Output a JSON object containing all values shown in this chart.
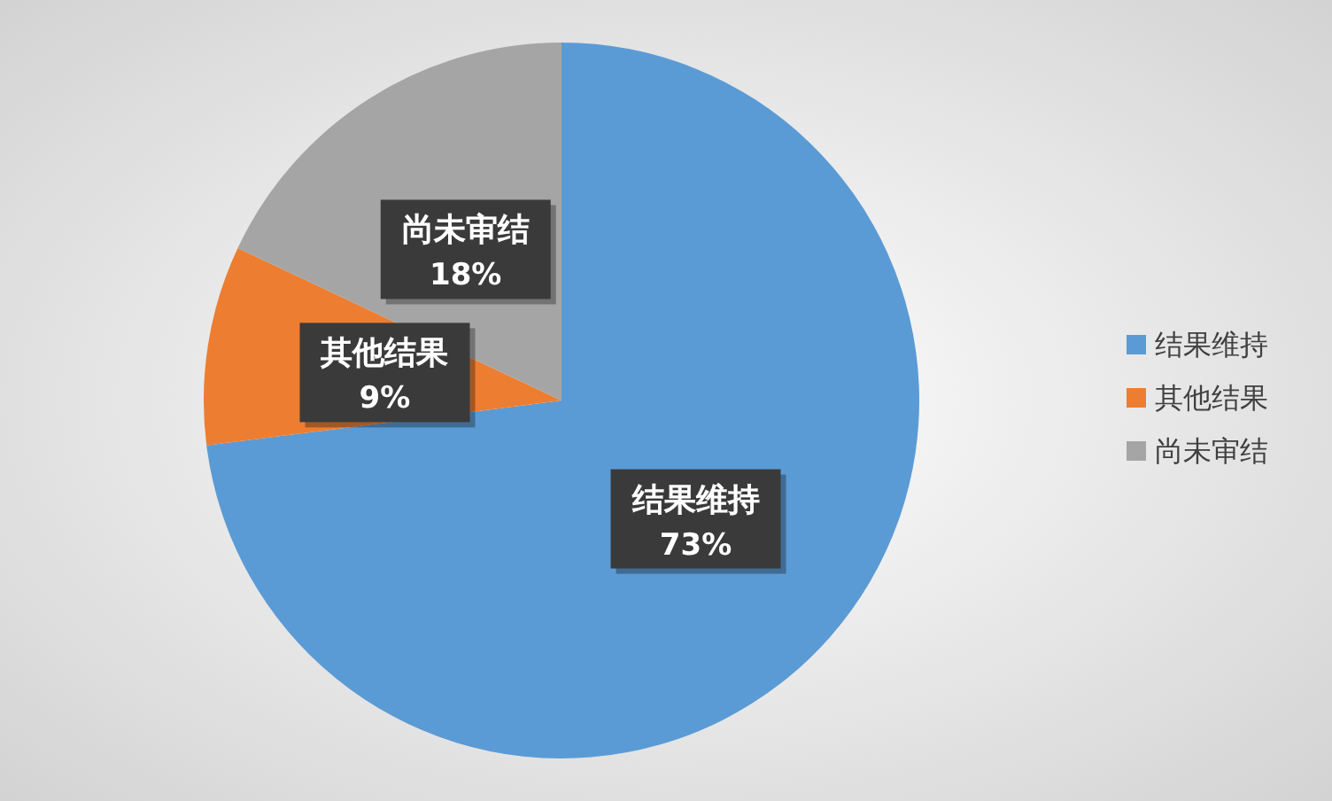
{
  "chart_data": {
    "type": "pie",
    "categories": [
      "结果维持",
      "其他结果",
      "尚未审结"
    ],
    "values": [
      73,
      9,
      18
    ],
    "colors": [
      "#5b9bd5",
      "#ed7d31",
      "#a5a5a5"
    ],
    "value_labels": [
      "73%",
      "9%",
      "18%"
    ],
    "legend": "right"
  }
}
